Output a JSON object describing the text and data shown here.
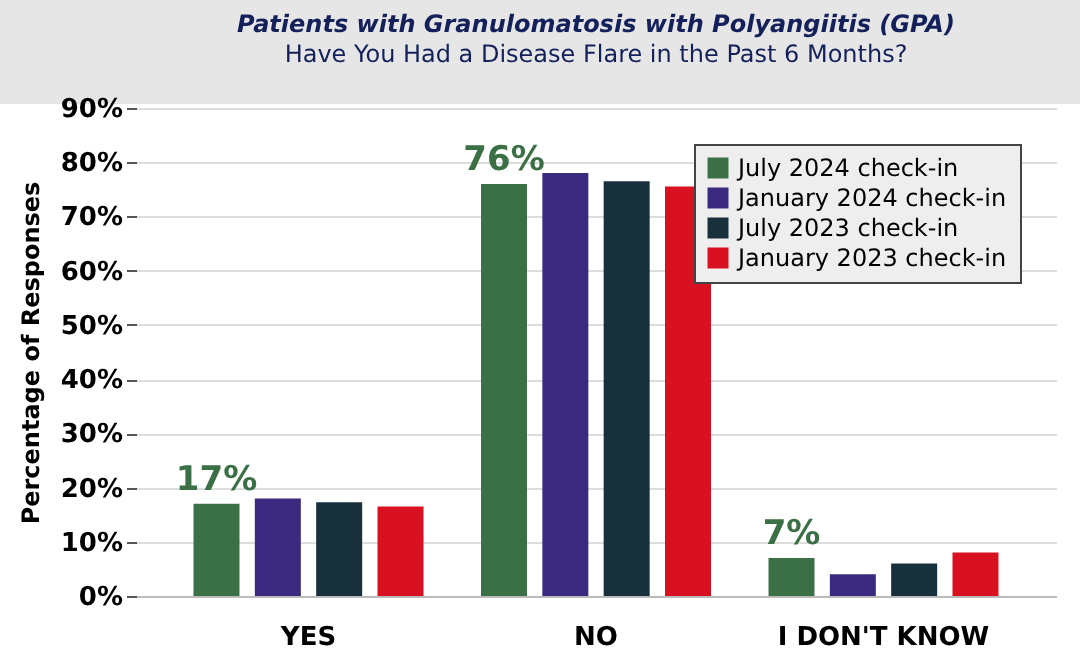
{
  "chart_data": {
    "type": "bar",
    "title": "Patients with Granulomatosis with Polyangiitis (GPA)",
    "subtitle": "Have You Had a Disease Flare in the Past 6 Months?",
    "ylabel": "Percentage of Responses",
    "categories": [
      "YES",
      "NO",
      "I DON'T KNOW"
    ],
    "series": [
      {
        "name": "July 2024 check-in",
        "color": "#3b7046",
        "values": [
          17,
          76,
          7
        ],
        "value_labels": [
          "17%",
          "76%",
          "7%"
        ]
      },
      {
        "name": "January 2024 check-in",
        "color": "#3b2a80",
        "values": [
          18,
          78,
          4
        ]
      },
      {
        "name": "July 2023 check-in",
        "color": "#182f3c",
        "values": [
          17.3,
          76.5,
          6
        ]
      },
      {
        "name": "January 2023 check-in",
        "color": "#d81020",
        "values": [
          16.5,
          75.5,
          8
        ]
      }
    ],
    "ylim": [
      0,
      90
    ],
    "yticks": [
      {
        "value": 0,
        "label": "0%"
      },
      {
        "value": 10,
        "label": "10%"
      },
      {
        "value": 20,
        "label": "20%"
      },
      {
        "value": 30,
        "label": "30%"
      },
      {
        "value": 40,
        "label": "40%"
      },
      {
        "value": 50,
        "label": "50%"
      },
      {
        "value": 60,
        "label": "60%"
      },
      {
        "value": 70,
        "label": "70%"
      },
      {
        "value": 80,
        "label": "80%"
      },
      {
        "value": 90,
        "label": "90%"
      }
    ],
    "grid": "y",
    "legend": "top right"
  }
}
